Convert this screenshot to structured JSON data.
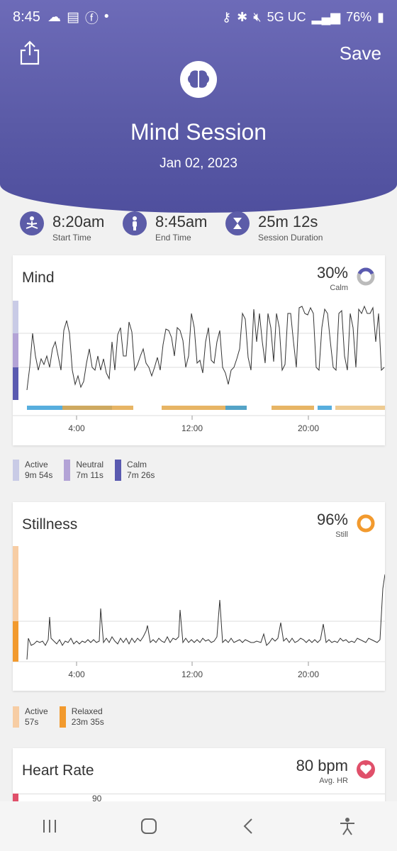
{
  "status_bar": {
    "time": "8:45",
    "network": "5G UC",
    "battery": "76%"
  },
  "header": {
    "save_label": "Save",
    "title": "Mind Session",
    "date": "Jan 02, 2023"
  },
  "stats": [
    {
      "value": "8:20am",
      "label": "Start Time",
      "icon": "meditation-icon"
    },
    {
      "value": "8:45am",
      "label": "End Time",
      "icon": "person-icon"
    },
    {
      "value": "25m 12s",
      "label": "Session Duration",
      "icon": "hourglass-icon"
    }
  ],
  "mind": {
    "title": "Mind",
    "percent": "30%",
    "percent_label": "Calm",
    "x_ticks": [
      "4:00",
      "12:00",
      "20:00"
    ],
    "legend": [
      {
        "label": "Active",
        "value": "9m 54s",
        "color": "#c9cbe6"
      },
      {
        "label": "Neutral",
        "value": "7m 11s",
        "color": "#b3a3d6"
      },
      {
        "label": "Calm",
        "value": "7m 26s",
        "color": "#5a5ab0"
      }
    ]
  },
  "stillness": {
    "title": "Stillness",
    "percent": "96%",
    "percent_label": "Still",
    "x_ticks": [
      "4:00",
      "12:00",
      "20:00"
    ],
    "legend": [
      {
        "label": "Active",
        "value": "57s",
        "color": "#f7cda4"
      },
      {
        "label": "Relaxed",
        "value": "23m 35s",
        "color": "#f29a2e"
      }
    ]
  },
  "heart_rate": {
    "title": "Heart Rate",
    "value": "80 bpm",
    "value_label": "Avg. HR",
    "first_tick": "90"
  },
  "colors": {
    "header": "#5c5ca8",
    "calm": "#5a5ab0",
    "still": "#f29a2e",
    "heart": "#e0506a"
  }
}
